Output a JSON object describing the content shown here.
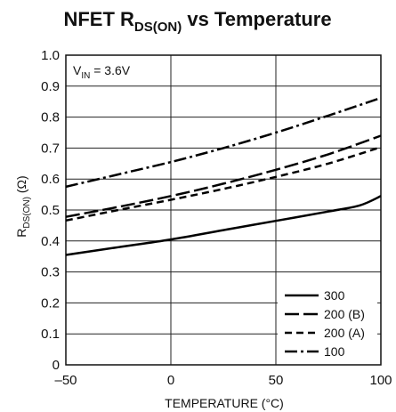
{
  "chart_data": {
    "type": "line",
    "title_parts": {
      "main": "NFET R",
      "sub": "DS(ON)",
      "rest": " vs Temperature"
    },
    "xlabel": "TEMPERATURE (°C)",
    "ylabel_parts": {
      "main": "R",
      "sub": "DS(ON)",
      "rest": " (Ω)"
    },
    "annotation_parts": {
      "main": "V",
      "sub": "IN",
      "rest": " = 3.6V"
    },
    "xlim": [
      -50,
      100
    ],
    "ylim": [
      0,
      1.0
    ],
    "x_ticks": [
      "-50",
      "0",
      "50",
      "100"
    ],
    "x_tick_values": [
      -50,
      0,
      50,
      100
    ],
    "y_ticks": [
      "0",
      "0.1",
      "0.2",
      "0.3",
      "0.4",
      "0.5",
      "0.6",
      "0.7",
      "0.8",
      "0.9",
      "1.0"
    ],
    "y_tick_values": [
      0,
      0.1,
      0.2,
      0.3,
      0.4,
      0.5,
      0.6,
      0.7,
      0.8,
      0.9,
      1.0
    ],
    "grid": true,
    "legend_position": "bottom-right",
    "series": [
      {
        "name": "300",
        "style": "solid",
        "x": [
          -50,
          -25,
          0,
          25,
          50,
          75,
          90,
          100
        ],
        "y": [
          0.355,
          0.38,
          0.405,
          0.435,
          0.465,
          0.495,
          0.515,
          0.545
        ]
      },
      {
        "name": "200 (B)",
        "style": "longdash",
        "x": [
          -50,
          -25,
          0,
          25,
          50,
          75,
          100
        ],
        "y": [
          0.478,
          0.51,
          0.545,
          0.585,
          0.63,
          0.68,
          0.74
        ]
      },
      {
        "name": "200 (A)",
        "style": "dash",
        "x": [
          -50,
          -25,
          0,
          25,
          50,
          75,
          100
        ],
        "y": [
          0.466,
          0.5,
          0.533,
          0.568,
          0.607,
          0.65,
          0.703
        ]
      },
      {
        "name": "100",
        "style": "dashdot",
        "x": [
          -50,
          -25,
          0,
          25,
          50,
          75,
          100
        ],
        "y": [
          0.575,
          0.615,
          0.655,
          0.7,
          0.75,
          0.805,
          0.862
        ]
      }
    ]
  }
}
